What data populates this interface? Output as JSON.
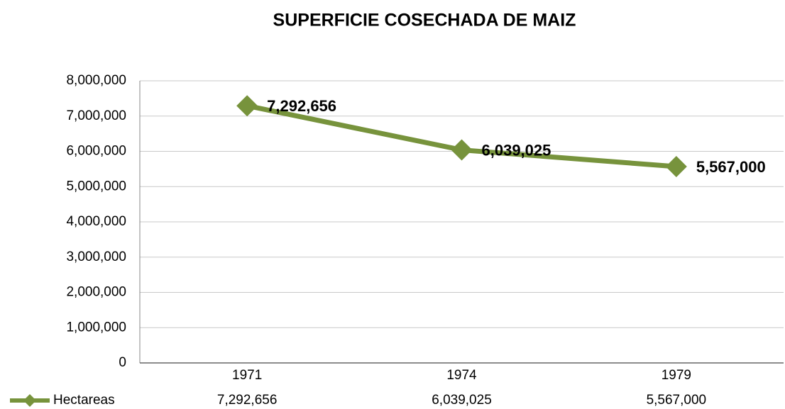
{
  "chart_data": {
    "type": "line",
    "title": "SUPERFICIE  COSECHADA  DE  MAIZ",
    "categories": [
      "1971",
      "1974",
      "1979"
    ],
    "series": [
      {
        "name": "Hectareas",
        "color": "#77933c",
        "values": [
          7292656,
          6039025,
          5567000
        ],
        "value_labels": [
          "7,292,656",
          "6,039,025",
          "5,567,000"
        ]
      }
    ],
    "ylim": [
      0,
      8000000
    ],
    "yticks": [
      0,
      {
        "value": 1000000,
        "label": "1,000,000"
      },
      {
        "value": 2000000,
        "label": "2,000,000"
      },
      {
        "value": 3000000,
        "label": "3,000,000"
      },
      {
        "value": 4000000,
        "label": "4,000,000"
      },
      {
        "value": 5000000,
        "label": "5,000,000"
      },
      {
        "value": 6000000,
        "label": "6,000,000"
      },
      {
        "value": 7000000,
        "label": "7,000,000"
      },
      {
        "value": 8000000,
        "label": "8,000,000"
      }
    ],
    "grid": true
  }
}
